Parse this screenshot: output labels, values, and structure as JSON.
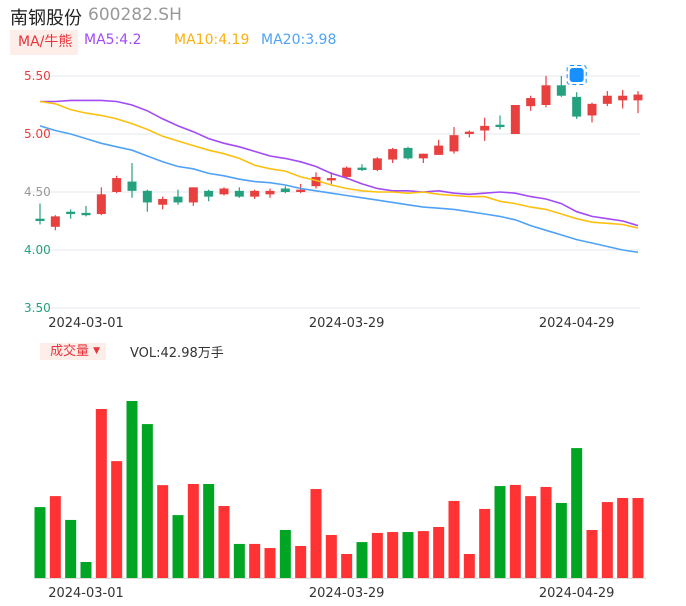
{
  "header": {
    "name": "南钢股份",
    "code": "600282.SH"
  },
  "ma_legend": {
    "selector": "MA/牛熊",
    "ma5": "MA5:4.2",
    "ma10": "MA10:4.19",
    "ma20": "MA20:3.98"
  },
  "volume_legend": {
    "selector": "成交量",
    "arrow": "▼",
    "value": "VOL:42.98万手"
  },
  "colors": {
    "up": "#e8403f",
    "down": "#26a17f",
    "ma5": "#a24bf5",
    "ma10": "#fcc010",
    "ma20": "#4fa2f7",
    "vol_up": "#ff3333",
    "vol_down": "#00a524",
    "badge": "#1890ff"
  },
  "chart_data": [
    {
      "type": "candlestick",
      "title": "",
      "ylim": [
        3.5,
        5.5
      ],
      "yticks": [
        "5.50",
        "5.00",
        "4.50",
        "4.00",
        "3.50"
      ],
      "grid": true,
      "xtick_labels": [
        {
          "index": 3,
          "label": "2024-03-01"
        },
        {
          "index": 20,
          "label": "2024-03-29"
        },
        {
          "index": 35,
          "label": "2024-04-29"
        }
      ],
      "ohlc": [
        [
          4.27,
          4.4,
          4.22,
          4.25
        ],
        [
          4.2,
          4.3,
          4.17,
          4.29
        ],
        [
          4.33,
          4.35,
          4.27,
          4.31
        ],
        [
          4.32,
          4.38,
          4.29,
          4.3
        ],
        [
          4.31,
          4.54,
          4.3,
          4.48
        ],
        [
          4.5,
          4.64,
          4.49,
          4.62
        ],
        [
          4.59,
          4.75,
          4.45,
          4.51
        ],
        [
          4.51,
          4.52,
          4.33,
          4.41
        ],
        [
          4.39,
          4.46,
          4.35,
          4.44
        ],
        [
          4.46,
          4.52,
          4.39,
          4.41
        ],
        [
          4.41,
          4.54,
          4.38,
          4.54
        ],
        [
          4.51,
          4.52,
          4.42,
          4.46
        ],
        [
          4.48,
          4.54,
          4.47,
          4.53
        ],
        [
          4.51,
          4.54,
          4.45,
          4.46
        ],
        [
          4.46,
          4.52,
          4.44,
          4.51
        ],
        [
          4.48,
          4.53,
          4.45,
          4.51
        ],
        [
          4.53,
          4.55,
          4.49,
          4.5
        ],
        [
          4.5,
          4.57,
          4.49,
          4.52
        ],
        [
          4.55,
          4.67,
          4.53,
          4.63
        ],
        [
          4.6,
          4.67,
          4.57,
          4.62
        ],
        [
          4.63,
          4.72,
          4.61,
          4.71
        ],
        [
          4.71,
          4.74,
          4.68,
          4.69
        ],
        [
          4.69,
          4.8,
          4.68,
          4.79
        ],
        [
          4.78,
          4.88,
          4.75,
          4.87
        ],
        [
          4.88,
          4.89,
          4.78,
          4.79
        ],
        [
          4.79,
          4.83,
          4.75,
          4.83
        ],
        [
          4.82,
          4.95,
          4.82,
          4.9
        ],
        [
          4.85,
          5.06,
          4.83,
          4.99
        ],
        [
          5.0,
          5.03,
          4.97,
          5.02
        ],
        [
          5.03,
          5.14,
          4.94,
          5.07
        ],
        [
          5.08,
          5.16,
          5.04,
          5.06
        ],
        [
          5.0,
          5.25,
          5.0,
          5.25
        ],
        [
          5.24,
          5.33,
          5.2,
          5.31
        ],
        [
          5.25,
          5.5,
          5.23,
          5.42
        ],
        [
          5.42,
          5.5,
          5.32,
          5.33
        ],
        [
          5.32,
          5.36,
          5.13,
          5.15
        ],
        [
          5.16,
          5.27,
          5.1,
          5.26
        ],
        [
          5.26,
          5.37,
          5.24,
          5.33
        ],
        [
          5.29,
          5.38,
          5.22,
          5.33
        ],
        [
          5.29,
          5.37,
          5.18,
          5.34
        ]
      ],
      "series": [
        {
          "name": "MA5",
          "values": [
            5.28,
            5.28,
            5.29,
            5.29,
            5.29,
            5.28,
            5.25,
            5.2,
            5.13,
            5.07,
            5.02,
            4.96,
            4.92,
            4.89,
            4.85,
            4.81,
            4.79,
            4.76,
            4.72,
            4.66,
            4.62,
            4.57,
            4.53,
            4.51,
            4.51,
            4.5,
            4.51,
            4.49,
            4.48,
            4.49,
            4.5,
            4.49,
            4.46,
            4.44,
            4.4,
            4.33,
            4.29,
            4.27,
            4.25,
            4.21
          ]
        },
        {
          "name": "MA10",
          "values": [
            5.28,
            5.26,
            5.21,
            5.18,
            5.16,
            5.13,
            5.09,
            5.04,
            4.98,
            4.94,
            4.9,
            4.86,
            4.83,
            4.79,
            4.73,
            4.7,
            4.68,
            4.63,
            4.6,
            4.56,
            4.53,
            4.51,
            4.5,
            4.5,
            4.49,
            4.5,
            4.48,
            4.47,
            4.46,
            4.46,
            4.42,
            4.4,
            4.37,
            4.35,
            4.31,
            4.27,
            4.24,
            4.23,
            4.22,
            4.19
          ]
        },
        {
          "name": "MA20",
          "values": [
            5.07,
            5.03,
            5.0,
            4.96,
            4.92,
            4.89,
            4.86,
            4.81,
            4.76,
            4.72,
            4.7,
            4.66,
            4.64,
            4.61,
            4.59,
            4.58,
            4.56,
            4.53,
            4.51,
            4.49,
            4.47,
            4.45,
            4.43,
            4.41,
            4.39,
            4.37,
            4.36,
            4.35,
            4.33,
            4.31,
            4.29,
            4.26,
            4.21,
            4.17,
            4.13,
            4.09,
            4.06,
            4.03,
            4.0,
            3.98
          ]
        }
      ],
      "marker": {
        "index": 35,
        "icon": "news-badge-icon"
      }
    },
    {
      "type": "bar",
      "title": "",
      "unit": "万手",
      "values": [
        38.1,
        44.0,
        31.2,
        8.6,
        90.8,
        62.8,
        95.1,
        82.7,
        49.9,
        33.8,
        50.5,
        50.5,
        38.7,
        18.3,
        18.3,
        16.1,
        25.8,
        17.2,
        47.8,
        23.1,
        12.9,
        19.3,
        24.2,
        24.7,
        24.7,
        25.2,
        27.4,
        41.4,
        12.9,
        37.1,
        49.4,
        50.0,
        44.0,
        48.9,
        40.3,
        69.8,
        25.8,
        40.8,
        43.0,
        42.98
      ],
      "direction": [
        "down",
        "up",
        "down",
        "down",
        "up",
        "up",
        "down",
        "down",
        "up",
        "down",
        "up",
        "down",
        "up",
        "down",
        "up",
        "up",
        "down",
        "up",
        "up",
        "up",
        "up",
        "down",
        "up",
        "up",
        "down",
        "up",
        "up",
        "up",
        "up",
        "up",
        "down",
        "up",
        "up",
        "up",
        "down",
        "down",
        "up",
        "up",
        "up",
        "up"
      ],
      "xtick_labels": [
        {
          "index": 3,
          "label": "2024-03-01"
        },
        {
          "index": 20,
          "label": "2024-03-29"
        },
        {
          "index": 35,
          "label": "2024-04-29"
        }
      ]
    }
  ]
}
